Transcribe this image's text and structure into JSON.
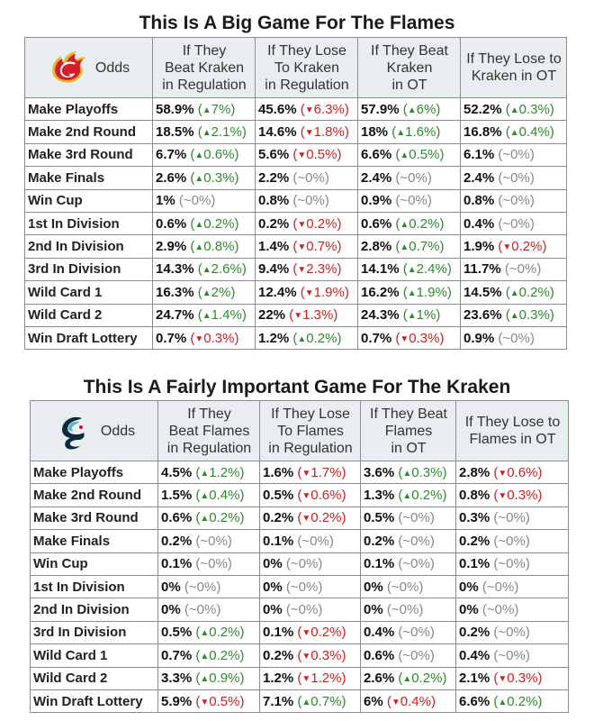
{
  "tables": [
    {
      "title": "This Is A Big Game For The Flames",
      "team_logo": "flames-logo",
      "odds_header": "Odds",
      "columns": [
        {
          "line1": "If They",
          "line2": "Beat Kraken",
          "line3": "in Regulation"
        },
        {
          "line1": "If They Lose",
          "line2": "To Kraken",
          "line3": "in Regulation"
        },
        {
          "line1": "If They Beat",
          "line2": "Kraken",
          "line3": "in OT"
        },
        {
          "line1": "If They Lose to",
          "line2": "Kraken in OT",
          "line3": ""
        }
      ],
      "rows": [
        {
          "label": "Make Playoffs",
          "cells": [
            {
              "value": "58.9%",
              "change": "7%",
              "dir": "up"
            },
            {
              "value": "45.6%",
              "change": "6.3%",
              "dir": "down"
            },
            {
              "value": "57.9%",
              "change": "6%",
              "dir": "up"
            },
            {
              "value": "52.2%",
              "change": "0.3%",
              "dir": "up"
            }
          ]
        },
        {
          "label": "Make 2nd Round",
          "cells": [
            {
              "value": "18.5%",
              "change": "2.1%",
              "dir": "up"
            },
            {
              "value": "14.6%",
              "change": "1.8%",
              "dir": "down"
            },
            {
              "value": "18%",
              "change": "1.6%",
              "dir": "up"
            },
            {
              "value": "16.8%",
              "change": "0.4%",
              "dir": "up"
            }
          ]
        },
        {
          "label": "Make 3rd Round",
          "cells": [
            {
              "value": "6.7%",
              "change": "0.6%",
              "dir": "up"
            },
            {
              "value": "5.6%",
              "change": "0.5%",
              "dir": "down"
            },
            {
              "value": "6.6%",
              "change": "0.5%",
              "dir": "up"
            },
            {
              "value": "6.1%",
              "change": "~0%",
              "dir": "flat"
            }
          ]
        },
        {
          "label": "Make Finals",
          "cells": [
            {
              "value": "2.6%",
              "change": "0.3%",
              "dir": "up"
            },
            {
              "value": "2.2%",
              "change": "~0%",
              "dir": "flat"
            },
            {
              "value": "2.4%",
              "change": "~0%",
              "dir": "flat"
            },
            {
              "value": "2.4%",
              "change": "~0%",
              "dir": "flat"
            }
          ]
        },
        {
          "label": "Win Cup",
          "cells": [
            {
              "value": "1%",
              "change": "~0%",
              "dir": "flat"
            },
            {
              "value": "0.8%",
              "change": "~0%",
              "dir": "flat"
            },
            {
              "value": "0.9%",
              "change": "~0%",
              "dir": "flat"
            },
            {
              "value": "0.8%",
              "change": "~0%",
              "dir": "flat"
            }
          ]
        },
        {
          "label": "1st In Division",
          "cells": [
            {
              "value": "0.6%",
              "change": "0.2%",
              "dir": "up"
            },
            {
              "value": "0.2%",
              "change": "0.2%",
              "dir": "down"
            },
            {
              "value": "0.6%",
              "change": "0.2%",
              "dir": "up"
            },
            {
              "value": "0.4%",
              "change": "~0%",
              "dir": "flat"
            }
          ]
        },
        {
          "label": "2nd In Division",
          "cells": [
            {
              "value": "2.9%",
              "change": "0.8%",
              "dir": "up"
            },
            {
              "value": "1.4%",
              "change": "0.7%",
              "dir": "down"
            },
            {
              "value": "2.8%",
              "change": "0.7%",
              "dir": "up"
            },
            {
              "value": "1.9%",
              "change": "0.2%",
              "dir": "down"
            }
          ]
        },
        {
          "label": "3rd In Division",
          "cells": [
            {
              "value": "14.3%",
              "change": "2.6%",
              "dir": "up"
            },
            {
              "value": "9.4%",
              "change": "2.3%",
              "dir": "down"
            },
            {
              "value": "14.1%",
              "change": "2.4%",
              "dir": "up"
            },
            {
              "value": "11.7%",
              "change": "~0%",
              "dir": "flat"
            }
          ]
        },
        {
          "label": "Wild Card 1",
          "cells": [
            {
              "value": "16.3%",
              "change": "2%",
              "dir": "up"
            },
            {
              "value": "12.4%",
              "change": "1.9%",
              "dir": "down"
            },
            {
              "value": "16.2%",
              "change": "1.9%",
              "dir": "up"
            },
            {
              "value": "14.5%",
              "change": "0.2%",
              "dir": "up"
            }
          ]
        },
        {
          "label": "Wild Card 2",
          "cells": [
            {
              "value": "24.7%",
              "change": "1.4%",
              "dir": "up"
            },
            {
              "value": "22%",
              "change": "1.3%",
              "dir": "down"
            },
            {
              "value": "24.3%",
              "change": "1%",
              "dir": "up"
            },
            {
              "value": "23.6%",
              "change": "0.3%",
              "dir": "up"
            }
          ]
        },
        {
          "label": "Win Draft Lottery",
          "cells": [
            {
              "value": "0.7%",
              "change": "0.3%",
              "dir": "down"
            },
            {
              "value": "1.2%",
              "change": "0.2%",
              "dir": "up"
            },
            {
              "value": "0.7%",
              "change": "0.3%",
              "dir": "down"
            },
            {
              "value": "0.9%",
              "change": "~0%",
              "dir": "flat"
            }
          ]
        }
      ]
    },
    {
      "title": "This Is A Fairly Important Game For The Kraken",
      "team_logo": "kraken-logo",
      "odds_header": "Odds",
      "columns": [
        {
          "line1": "If They",
          "line2": "Beat Flames",
          "line3": "in Regulation"
        },
        {
          "line1": "If They Lose",
          "line2": "To Flames",
          "line3": "in Regulation"
        },
        {
          "line1": "If They Beat",
          "line2": "Flames",
          "line3": "in OT"
        },
        {
          "line1": "If They Lose to",
          "line2": "Flames in OT",
          "line3": ""
        }
      ],
      "rows": [
        {
          "label": "Make Playoffs",
          "cells": [
            {
              "value": "4.5%",
              "change": "1.2%",
              "dir": "up"
            },
            {
              "value": "1.6%",
              "change": "1.7%",
              "dir": "down"
            },
            {
              "value": "3.6%",
              "change": "0.3%",
              "dir": "up"
            },
            {
              "value": "2.8%",
              "change": "0.6%",
              "dir": "down"
            }
          ]
        },
        {
          "label": "Make 2nd Round",
          "cells": [
            {
              "value": "1.5%",
              "change": "0.4%",
              "dir": "up"
            },
            {
              "value": "0.5%",
              "change": "0.6%",
              "dir": "down"
            },
            {
              "value": "1.3%",
              "change": "0.2%",
              "dir": "up"
            },
            {
              "value": "0.8%",
              "change": "0.3%",
              "dir": "down"
            }
          ]
        },
        {
          "label": "Make 3rd Round",
          "cells": [
            {
              "value": "0.6%",
              "change": "0.2%",
              "dir": "up"
            },
            {
              "value": "0.2%",
              "change": "0.2%",
              "dir": "down"
            },
            {
              "value": "0.5%",
              "change": "~0%",
              "dir": "flat"
            },
            {
              "value": "0.3%",
              "change": "~0%",
              "dir": "flat"
            }
          ]
        },
        {
          "label": "Make Finals",
          "cells": [
            {
              "value": "0.2%",
              "change": "~0%",
              "dir": "flat"
            },
            {
              "value": "0.1%",
              "change": "~0%",
              "dir": "flat"
            },
            {
              "value": "0.2%",
              "change": "~0%",
              "dir": "flat"
            },
            {
              "value": "0.2%",
              "change": "~0%",
              "dir": "flat"
            }
          ]
        },
        {
          "label": "Win Cup",
          "cells": [
            {
              "value": "0.1%",
              "change": "~0%",
              "dir": "flat"
            },
            {
              "value": "0%",
              "change": "~0%",
              "dir": "flat"
            },
            {
              "value": "0.1%",
              "change": "~0%",
              "dir": "flat"
            },
            {
              "value": "0.1%",
              "change": "~0%",
              "dir": "flat"
            }
          ]
        },
        {
          "label": "1st In Division",
          "cells": [
            {
              "value": "0%",
              "change": "~0%",
              "dir": "flat"
            },
            {
              "value": "0%",
              "change": "~0%",
              "dir": "flat"
            },
            {
              "value": "0%",
              "change": "~0%",
              "dir": "flat"
            },
            {
              "value": "0%",
              "change": "~0%",
              "dir": "flat"
            }
          ]
        },
        {
          "label": "2nd In Division",
          "cells": [
            {
              "value": "0%",
              "change": "~0%",
              "dir": "flat"
            },
            {
              "value": "0%",
              "change": "~0%",
              "dir": "flat"
            },
            {
              "value": "0%",
              "change": "~0%",
              "dir": "flat"
            },
            {
              "value": "0%",
              "change": "~0%",
              "dir": "flat"
            }
          ]
        },
        {
          "label": "3rd In Division",
          "cells": [
            {
              "value": "0.5%",
              "change": "0.2%",
              "dir": "up"
            },
            {
              "value": "0.1%",
              "change": "0.2%",
              "dir": "down"
            },
            {
              "value": "0.4%",
              "change": "~0%",
              "dir": "flat"
            },
            {
              "value": "0.2%",
              "change": "~0%",
              "dir": "flat"
            }
          ]
        },
        {
          "label": "Wild Card 1",
          "cells": [
            {
              "value": "0.7%",
              "change": "0.2%",
              "dir": "up"
            },
            {
              "value": "0.2%",
              "change": "0.3%",
              "dir": "down"
            },
            {
              "value": "0.6%",
              "change": "~0%",
              "dir": "flat"
            },
            {
              "value": "0.4%",
              "change": "~0%",
              "dir": "flat"
            }
          ]
        },
        {
          "label": "Wild Card 2",
          "cells": [
            {
              "value": "3.3%",
              "change": "0.9%",
              "dir": "up"
            },
            {
              "value": "1.2%",
              "change": "1.2%",
              "dir": "down"
            },
            {
              "value": "2.6%",
              "change": "0.2%",
              "dir": "up"
            },
            {
              "value": "2.1%",
              "change": "0.3%",
              "dir": "down"
            }
          ]
        },
        {
          "label": "Win Draft Lottery",
          "cells": [
            {
              "value": "5.9%",
              "change": "0.5%",
              "dir": "down"
            },
            {
              "value": "7.1%",
              "change": "0.7%",
              "dir": "up"
            },
            {
              "value": "6%",
              "change": "0.4%",
              "dir": "down"
            },
            {
              "value": "6.6%",
              "change": "0.2%",
              "dir": "up"
            }
          ]
        }
      ]
    }
  ]
}
